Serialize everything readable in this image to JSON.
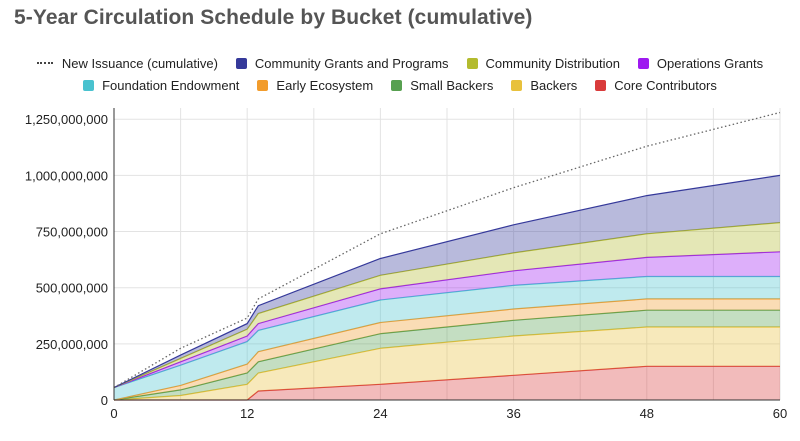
{
  "chart_data": {
    "type": "area",
    "stacked": true,
    "title": "5-Year Circulation Schedule by Bucket (cumulative)",
    "xlabel": "",
    "ylabel": "",
    "x": [
      0,
      6,
      12,
      13,
      24,
      36,
      48,
      60
    ],
    "xticks": [
      0,
      12,
      24,
      36,
      48,
      60
    ],
    "yticks": [
      0,
      250000000,
      500000000,
      750000000,
      1000000000,
      1250000000
    ],
    "ytick_labels": [
      "0",
      "250,000,000",
      "500,000,000",
      "750,000,000",
      "1,000,000,000",
      "1,250,000,000"
    ],
    "xlim": [
      0,
      60
    ],
    "ylim": [
      0,
      1300000000
    ],
    "legend_position": "top",
    "series": [
      {
        "name": "Core Contributors",
        "color": "#d93b3b",
        "values": [
          0,
          0,
          0,
          40000000,
          70000000,
          110000000,
          150000000,
          150000000
        ]
      },
      {
        "name": "Backers",
        "color": "#e8c13c",
        "values": [
          0,
          20000000,
          70000000,
          80000000,
          160000000,
          175000000,
          175000000,
          175000000
        ]
      },
      {
        "name": "Small Backers",
        "color": "#57a050",
        "values": [
          0,
          25000000,
          50000000,
          50000000,
          65000000,
          70000000,
          75000000,
          75000000
        ]
      },
      {
        "name": "Early Ecosystem",
        "color": "#f29c2c",
        "values": [
          0,
          20000000,
          40000000,
          45000000,
          50000000,
          50000000,
          50000000,
          50000000
        ]
      },
      {
        "name": "Foundation Endowment",
        "color": "#49c2cf",
        "values": [
          55000000,
          90000000,
          100000000,
          95000000,
          100000000,
          105000000,
          100000000,
          100000000
        ]
      },
      {
        "name": "Operations Grants",
        "color": "#9e1af0",
        "values": [
          0,
          15000000,
          25000000,
          30000000,
          50000000,
          65000000,
          85000000,
          110000000
        ]
      },
      {
        "name": "Community Distribution",
        "color": "#b3bb2e",
        "values": [
          0,
          15000000,
          30000000,
          45000000,
          60000000,
          80000000,
          105000000,
          130000000
        ]
      },
      {
        "name": "Community Grants and Programs",
        "color": "#35399a",
        "values": [
          0,
          15000000,
          25000000,
          35000000,
          75000000,
          125000000,
          170000000,
          210000000
        ]
      }
    ],
    "overlay_line": {
      "name": "New Issuance (cumulative)",
      "style": "dotted",
      "color": "#666666",
      "x": [
        0,
        6,
        12,
        13,
        24,
        36,
        48,
        60
      ],
      "values": [
        55000000,
        230000000,
        365000000,
        450000000,
        740000000,
        945000000,
        1130000000,
        1280000000
      ]
    }
  },
  "legend": {
    "row1": [
      {
        "label": "New Issuance (cumulative)",
        "kind": "dotted",
        "color": "#444444"
      },
      {
        "label": "Community Grants and Programs",
        "kind": "swatch",
        "color": "#35399a"
      },
      {
        "label": "Community Distribution",
        "kind": "swatch",
        "color": "#b3bb2e"
      },
      {
        "label": "Operations Grants",
        "kind": "swatch",
        "color": "#9e1af0"
      }
    ],
    "row2": [
      {
        "label": "Foundation Endowment",
        "kind": "swatch",
        "color": "#49c2cf"
      },
      {
        "label": "Early Ecosystem",
        "kind": "swatch",
        "color": "#f29c2c"
      },
      {
        "label": "Small Backers",
        "kind": "swatch",
        "color": "#57a050"
      },
      {
        "label": "Backers",
        "kind": "swatch",
        "color": "#e8c13c"
      },
      {
        "label": "Core Contributors",
        "kind": "swatch",
        "color": "#d93b3b"
      }
    ]
  }
}
